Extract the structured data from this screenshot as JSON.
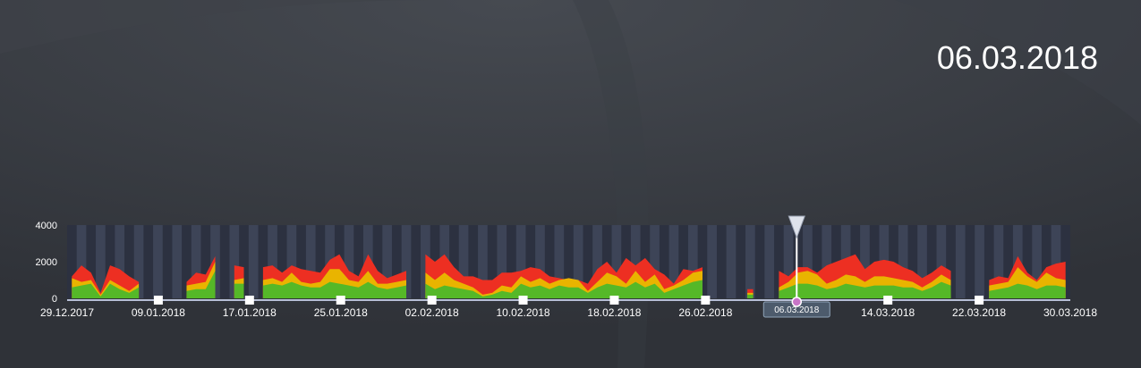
{
  "selected_date": "06.03.2018",
  "chart_data": {
    "type": "area",
    "title": "",
    "ylim": [
      0,
      4000
    ],
    "yticks": [
      0,
      2000,
      4000
    ],
    "x_start": "29.12.2017",
    "x_end": "30.03.2018",
    "x_tick_labels": [
      "29.12.2017",
      "09.01.2018",
      "17.01.2018",
      "25.01.2018",
      "02.02.2018",
      "10.02.2018",
      "18.02.2018",
      "26.02.2018",
      "06.03.2018",
      "14.03.2018",
      "22.03.2018",
      "30.03.2018"
    ],
    "highlighted_tick": "06.03.2018",
    "legend": "none",
    "series": [
      {
        "color": "#ed2f22",
        "values": [
          1200,
          1800,
          1400,
          300,
          1800,
          1600,
          1200,
          900,
          null,
          null,
          null,
          null,
          900,
          1400,
          1300,
          2300,
          null,
          1800,
          1700,
          null,
          1700,
          1800,
          1400,
          1800,
          1600,
          1500,
          1400,
          2100,
          2400,
          1500,
          1200,
          2400,
          1500,
          1100,
          1300,
          1500,
          null,
          2400,
          2000,
          2400,
          1700,
          1200,
          1200,
          1000,
          1000,
          1400,
          1400,
          1500,
          1700,
          1600,
          1200,
          1100,
          1000,
          1000,
          800,
          1600,
          2000,
          1400,
          2200,
          1800,
          2200,
          1600,
          1300,
          800,
          1600,
          1500,
          1700,
          null,
          null,
          null,
          null,
          500,
          null,
          null,
          1500,
          1200,
          1700,
          1700,
          1400,
          1800,
          2000,
          2200,
          2400,
          1600,
          2000,
          2100,
          2000,
          1700,
          1500,
          1100,
          1400,
          1800,
          1500,
          null,
          null,
          null,
          1000,
          1200,
          1100,
          2300,
          1400,
          1000,
          1700,
          1900,
          2000
        ]
      },
      {
        "color": "#e9b400",
        "values": [
          1100,
          900,
          1000,
          200,
          1000,
          700,
          400,
          800,
          null,
          null,
          null,
          null,
          700,
          800,
          900,
          2000,
          null,
          1000,
          1100,
          null,
          1000,
          1100,
          900,
          1400,
          900,
          800,
          900,
          1600,
          1600,
          1000,
          900,
          1500,
          800,
          800,
          900,
          1000,
          null,
          1400,
          1000,
          1400,
          1000,
          800,
          600,
          200,
          300,
          700,
          600,
          1200,
          900,
          1100,
          800,
          1000,
          1100,
          1000,
          400,
          900,
          1400,
          1200,
          800,
          1500,
          900,
          1300,
          500,
          700,
          1000,
          1400,
          1500,
          null,
          null,
          null,
          null,
          300,
          null,
          null,
          600,
          900,
          1400,
          1500,
          1300,
          800,
          1000,
          1300,
          1200,
          900,
          1200,
          1200,
          1100,
          1000,
          900,
          600,
          900,
          1300,
          1000,
          null,
          null,
          null,
          700,
          800,
          900,
          1700,
          1200,
          900,
          1400,
          1100,
          1000
        ]
      },
      {
        "color": "#55b828",
        "values": [
          600,
          700,
          800,
          100,
          800,
          500,
          300,
          600,
          null,
          null,
          null,
          null,
          400,
          500,
          500,
          1500,
          null,
          800,
          800,
          null,
          700,
          800,
          700,
          900,
          700,
          600,
          600,
          900,
          800,
          700,
          600,
          900,
          600,
          500,
          600,
          700,
          null,
          800,
          500,
          700,
          600,
          500,
          400,
          100,
          200,
          400,
          300,
          800,
          600,
          700,
          500,
          700,
          600,
          600,
          300,
          600,
          800,
          700,
          600,
          900,
          600,
          800,
          300,
          500,
          700,
          900,
          1000,
          null,
          null,
          null,
          null,
          200,
          null,
          null,
          400,
          600,
          800,
          800,
          700,
          500,
          600,
          800,
          700,
          600,
          700,
          700,
          700,
          600,
          600,
          400,
          600,
          900,
          700,
          null,
          null,
          null,
          400,
          500,
          600,
          800,
          700,
          500,
          700,
          700,
          600
        ]
      }
    ]
  }
}
